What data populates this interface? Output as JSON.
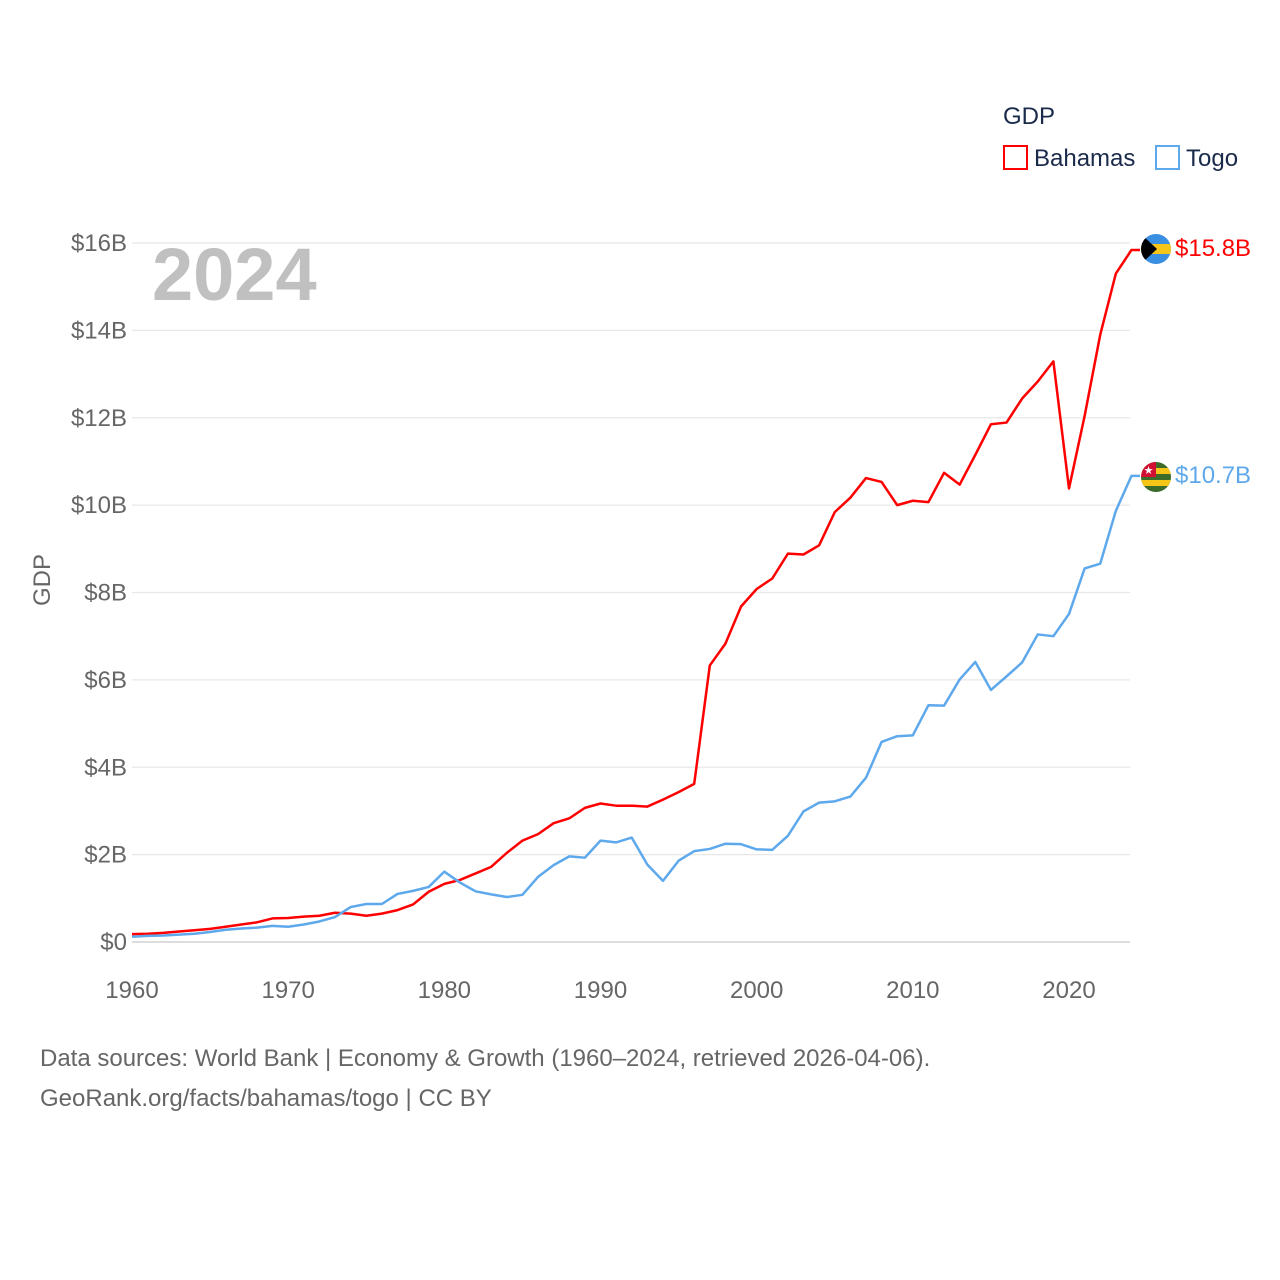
{
  "chart_data": {
    "type": "line",
    "title": "GDP",
    "ylabel": "GDP",
    "xlabel": "",
    "year_label": "2024",
    "xlim": [
      1960,
      2024
    ],
    "ylim": [
      0,
      16
    ],
    "x_ticks": [
      "1960",
      "1970",
      "1980",
      "1990",
      "2000",
      "2010",
      "2020"
    ],
    "y_ticks": [
      "$0",
      "$2B",
      "$4B",
      "$6B",
      "$8B",
      "$10B",
      "$12B",
      "$14B",
      "$16B"
    ],
    "grid": true,
    "legend_position": "top-right",
    "legend_title": "GDP",
    "x_start": 1960,
    "series": [
      {
        "name": "Bahamas",
        "color": "#ff0000",
        "end_label": "$15.8B",
        "flag": "bahamas-flag",
        "values": [
          0.18,
          0.19,
          0.21,
          0.24,
          0.27,
          0.3,
          0.35,
          0.4,
          0.45,
          0.54,
          0.55,
          0.58,
          0.6,
          0.67,
          0.65,
          0.6,
          0.65,
          0.73,
          0.86,
          1.15,
          1.33,
          1.42,
          1.57,
          1.72,
          2.04,
          2.32,
          2.47,
          2.72,
          2.83,
          3.07,
          3.17,
          3.12,
          3.12,
          3.1,
          3.26,
          3.43,
          3.62,
          6.33,
          6.83,
          7.68,
          8.08,
          8.32,
          8.89,
          8.87,
          9.08,
          9.84,
          10.17,
          10.62,
          10.53,
          10.0,
          10.1,
          10.07,
          10.74,
          10.47,
          11.15,
          11.85,
          11.89,
          12.44,
          12.83,
          13.29,
          10.38,
          12.04,
          13.9,
          15.3,
          15.84
        ]
      },
      {
        "name": "Togo",
        "color": "#5ea8ec",
        "end_label": "$10.7B",
        "flag": "togo-flag",
        "values": [
          0.12,
          0.14,
          0.15,
          0.17,
          0.19,
          0.23,
          0.28,
          0.31,
          0.33,
          0.37,
          0.35,
          0.4,
          0.47,
          0.57,
          0.8,
          0.87,
          0.87,
          1.1,
          1.17,
          1.26,
          1.61,
          1.36,
          1.16,
          1.09,
          1.03,
          1.08,
          1.49,
          1.76,
          1.96,
          1.93,
          2.32,
          2.28,
          2.39,
          1.77,
          1.4,
          1.86,
          2.08,
          2.13,
          2.25,
          2.24,
          2.12,
          2.11,
          2.43,
          2.99,
          3.19,
          3.22,
          3.33,
          3.76,
          4.58,
          4.71,
          4.73,
          5.42,
          5.41,
          6.01,
          6.41,
          5.77,
          6.08,
          6.4,
          7.04,
          7.0,
          7.51,
          8.55,
          8.66,
          9.87,
          10.67
        ]
      }
    ]
  },
  "footer": {
    "line1": "Data sources: World Bank | Economy & Growth (1960–2024, retrieved 2026-04-06).",
    "line2": "GeoRank.org/facts/bahamas/togo | CC BY"
  }
}
